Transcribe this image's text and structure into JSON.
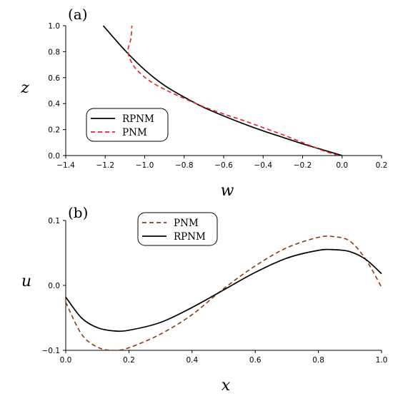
{
  "chart_data": [
    {
      "type": "line",
      "panel_label": "(a)",
      "xlabel": "w",
      "ylabel": "z",
      "xlim": [
        -1.4,
        0.2
      ],
      "ylim": [
        0,
        1.0
      ],
      "x_ticks": [
        "−1.4",
        "−1.2",
        "−1.0",
        "−0.8",
        "−0.6",
        "−0.4",
        "−0.2",
        "0.0",
        "0.2"
      ],
      "x_tick_values": [
        -1.4,
        -1.2,
        -1.0,
        -0.8,
        -0.6,
        -0.4,
        -0.2,
        0.0,
        0.2
      ],
      "y_ticks": [
        "0.0",
        "0.2",
        "0.4",
        "0.6",
        "0.8",
        "1.0"
      ],
      "y_tick_values": [
        0.0,
        0.2,
        0.4,
        0.6,
        0.8,
        1.0
      ],
      "legend_position": "lower-left",
      "series": [
        {
          "name": "RPNM",
          "color": "#000000",
          "style": "solid",
          "x": [
            0.0,
            -0.1,
            -0.2,
            -0.3,
            -0.4,
            -0.5,
            -0.6,
            -0.7,
            -0.8,
            -0.9,
            -1.0,
            -1.1,
            -1.21
          ],
          "y": [
            0.0,
            0.045,
            0.09,
            0.14,
            0.19,
            0.245,
            0.305,
            0.37,
            0.45,
            0.54,
            0.66,
            0.81,
            1.0
          ]
        },
        {
          "name": "PNM",
          "color": "#e8202a",
          "style": "dashed",
          "x": [
            -0.02,
            -0.1,
            -0.2,
            -0.3,
            -0.4,
            -0.5,
            -0.6,
            -0.7,
            -0.8,
            -0.9,
            -0.97,
            -1.02,
            -1.06,
            -1.085,
            -1.07,
            -1.065
          ],
          "y": [
            0.0,
            0.04,
            0.1,
            0.16,
            0.215,
            0.27,
            0.32,
            0.375,
            0.44,
            0.51,
            0.57,
            0.63,
            0.7,
            0.8,
            0.9,
            1.0
          ]
        }
      ]
    },
    {
      "type": "line",
      "panel_label": "(b)",
      "xlabel": "x",
      "ylabel": "u",
      "xlim": [
        0,
        1.0
      ],
      "ylim": [
        -0.1,
        0.1
      ],
      "x_ticks": [
        "0.0",
        "0.2",
        "0.4",
        "0.6",
        "0.8",
        "1.0"
      ],
      "x_tick_values": [
        0.0,
        0.2,
        0.4,
        0.6,
        0.8,
        1.0
      ],
      "y_ticks": [
        "−0.1",
        "0.0",
        "0.1"
      ],
      "y_tick_values": [
        -0.1,
        0.0,
        0.1
      ],
      "legend_position": "top-center",
      "series": [
        {
          "name": "PNM",
          "color": "#8a3a12",
          "style": "dashed",
          "x": [
            0.0,
            0.05,
            0.1,
            0.15,
            0.2,
            0.3,
            0.4,
            0.5,
            0.6,
            0.7,
            0.8,
            0.85,
            0.9,
            0.95,
            1.0
          ],
          "y": [
            -0.026,
            -0.075,
            -0.095,
            -0.1,
            -0.096,
            -0.075,
            -0.045,
            -0.005,
            0.03,
            0.058,
            0.074,
            0.075,
            0.068,
            0.04,
            -0.003
          ]
        },
        {
          "name": "RPNM",
          "color": "#000000",
          "style": "solid",
          "x": [
            0.0,
            0.05,
            0.1,
            0.15,
            0.2,
            0.3,
            0.4,
            0.5,
            0.6,
            0.7,
            0.8,
            0.85,
            0.9,
            0.95,
            1.0
          ],
          "y": [
            -0.018,
            -0.05,
            -0.065,
            -0.07,
            -0.069,
            -0.057,
            -0.034,
            -0.007,
            0.02,
            0.042,
            0.054,
            0.055,
            0.052,
            0.04,
            0.018
          ]
        }
      ]
    }
  ]
}
